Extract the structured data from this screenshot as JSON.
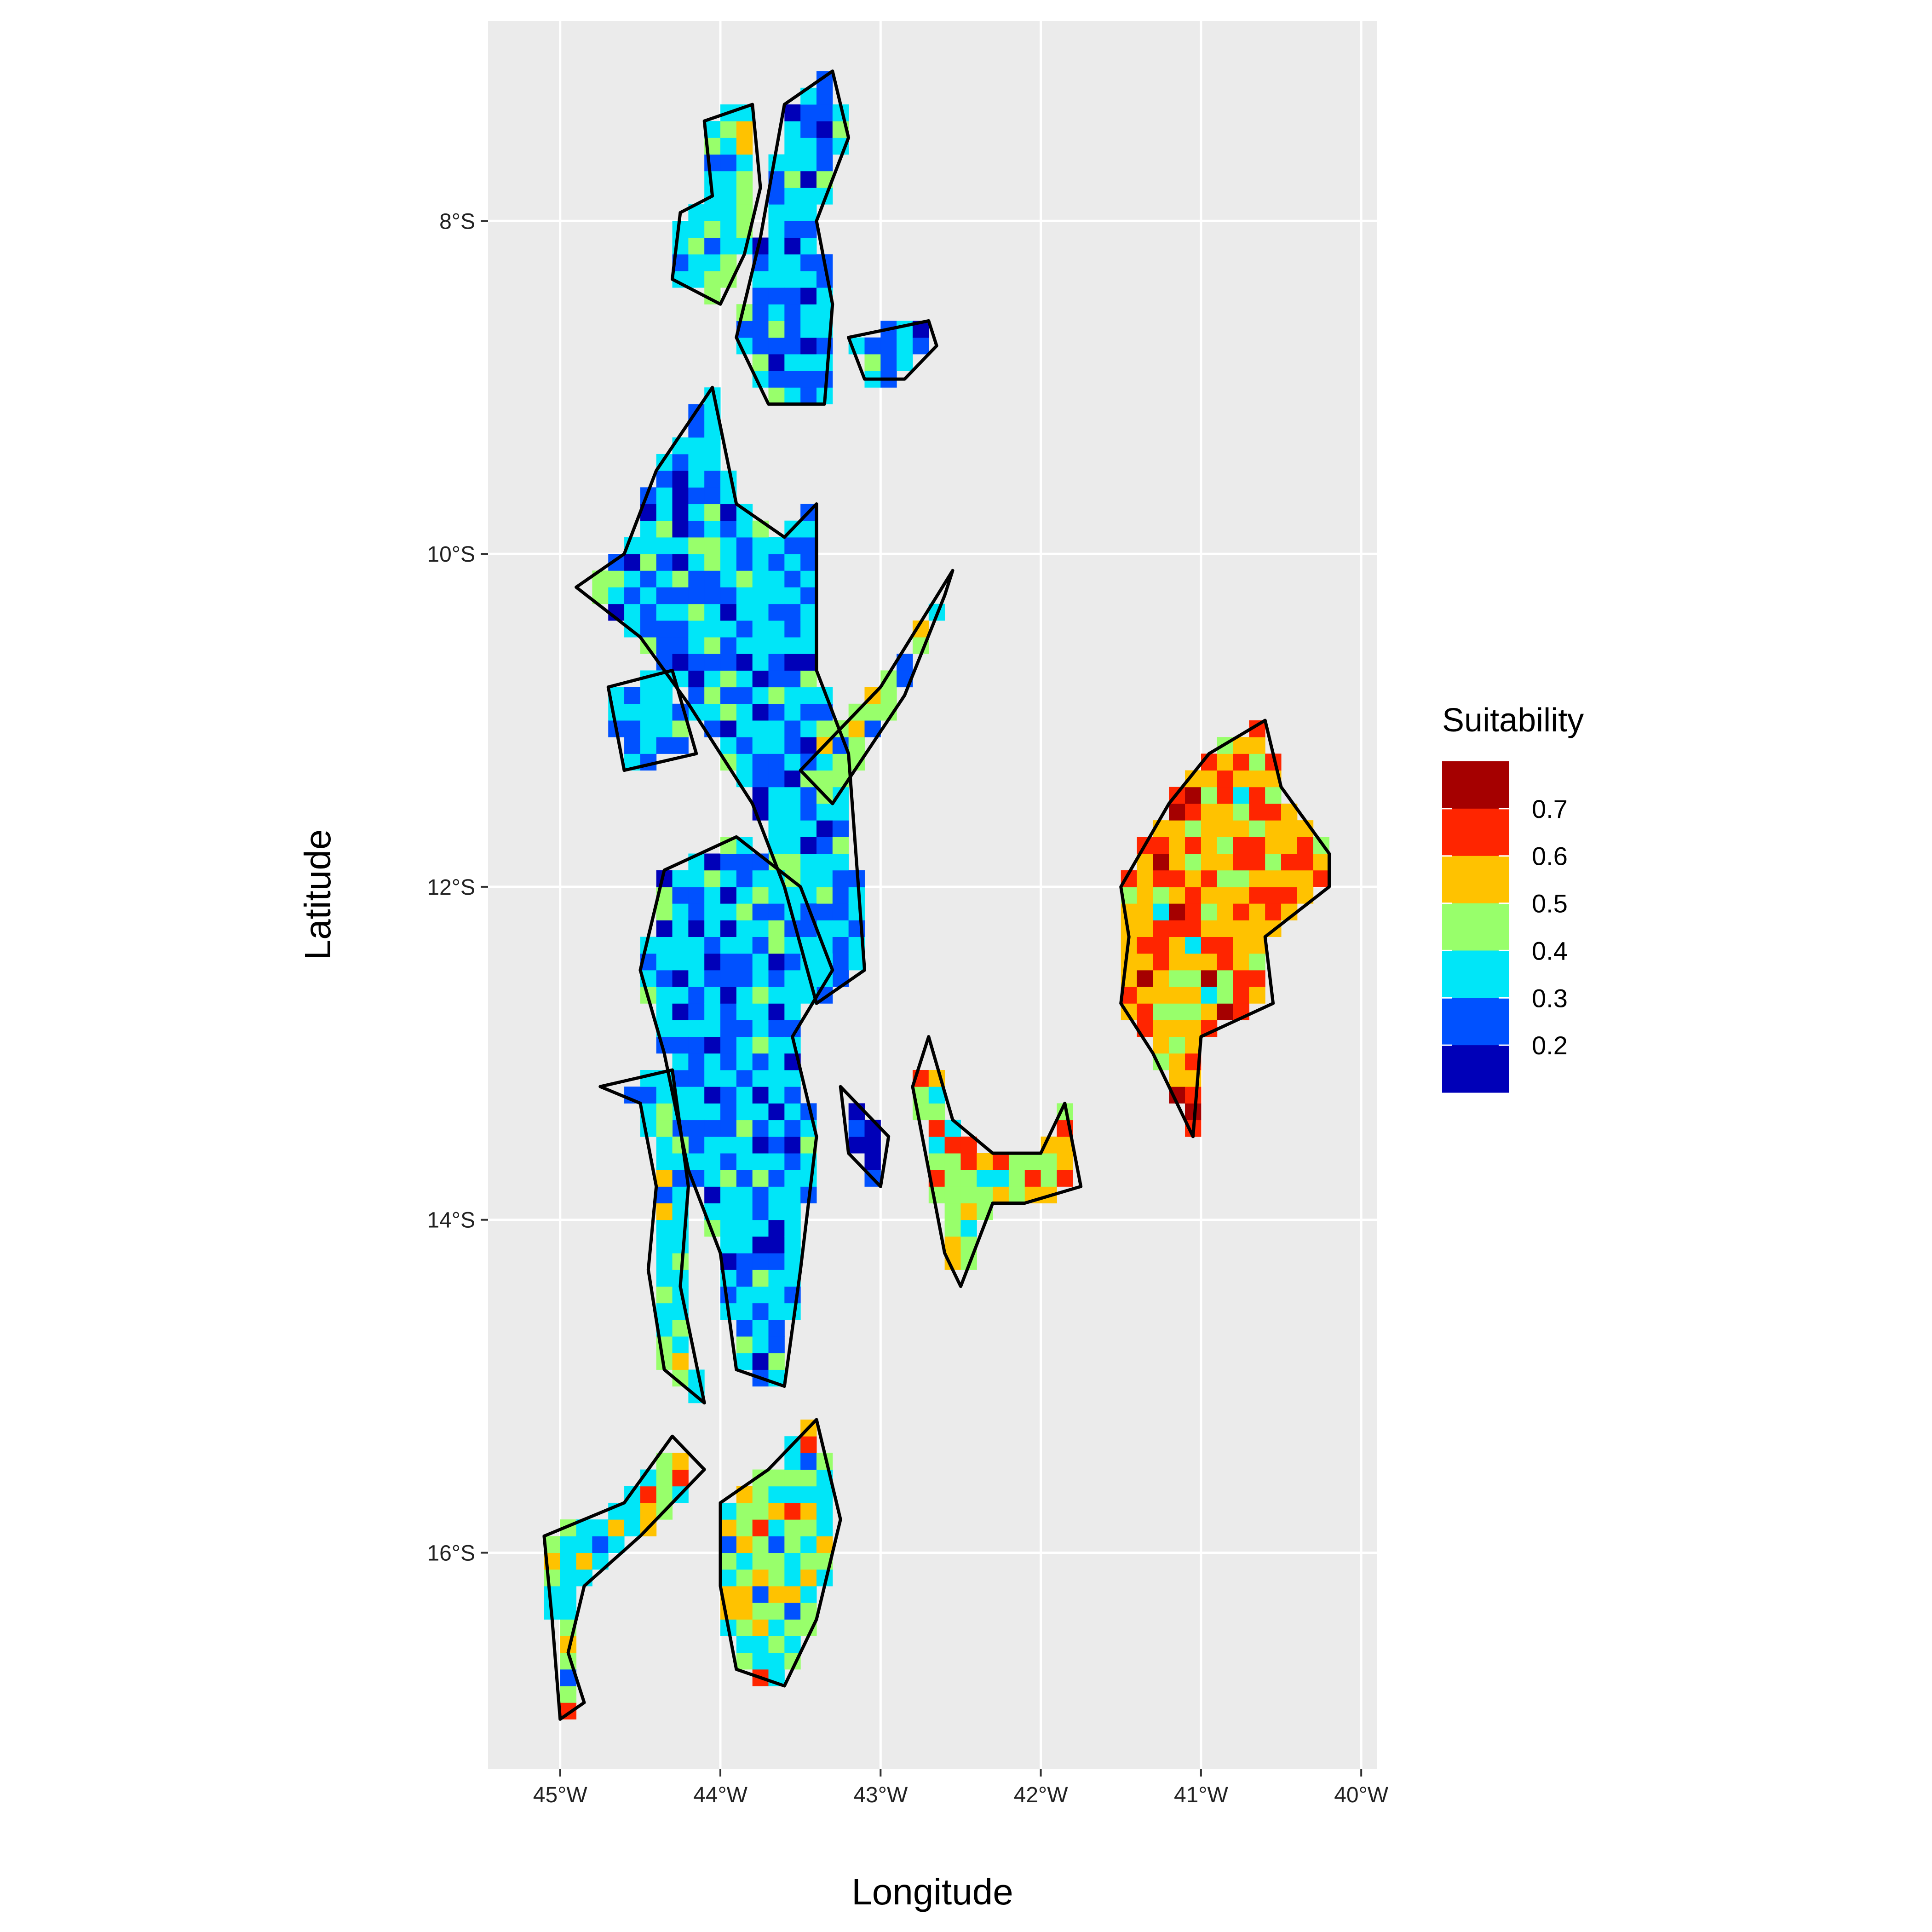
{
  "map": {
    "x_title": "Longitude",
    "y_title": "Latitude",
    "x_ticks": [
      {
        "lon": -45,
        "label": "45°W"
      },
      {
        "lon": -44,
        "label": "44°W"
      },
      {
        "lon": -43,
        "label": "43°W"
      },
      {
        "lon": -42,
        "label": "42°W"
      },
      {
        "lon": -41,
        "label": "41°W"
      },
      {
        "lon": -40,
        "label": "40°W"
      }
    ],
    "y_ticks": [
      {
        "lat": -8,
        "label": "8°S"
      },
      {
        "lat": -10,
        "label": "10°S"
      },
      {
        "lat": -12,
        "label": "12°S"
      },
      {
        "lat": -14,
        "label": "14°S"
      },
      {
        "lat": -16,
        "label": "16°S"
      }
    ],
    "lon_range": [
      -45.45,
      -39.9
    ],
    "lat_range": [
      -17.3,
      -6.8
    ],
    "panel_background": "#EBEBEB",
    "grid_color": "#FFFFFF",
    "outline_color": "#000000"
  },
  "legend": {
    "title": "Suitability",
    "labels": [
      "0.7",
      "0.6",
      "0.5",
      "0.4",
      "0.3",
      "0.2"
    ],
    "bins": [
      {
        "color": "#A50000",
        "range": [
          0.7,
          0.75
        ]
      },
      {
        "color": "#FF2500",
        "range": [
          0.6,
          0.7
        ]
      },
      {
        "color": "#FFC200",
        "range": [
          0.5,
          0.6
        ]
      },
      {
        "color": "#98FF6B",
        "range": [
          0.4,
          0.5
        ]
      },
      {
        "color": "#00E6F8",
        "range": [
          0.3,
          0.4
        ]
      },
      {
        "color": "#0051FF",
        "range": [
          0.2,
          0.3
        ]
      },
      {
        "color": "#0000B8",
        "range": [
          0.15,
          0.2
        ]
      }
    ]
  },
  "regions": [
    {
      "name": "north-west-strip",
      "tone": "green-cyan",
      "outline": [
        [
          -44.1,
          -7.4
        ],
        [
          -43.8,
          -7.3
        ],
        [
          -43.75,
          -7.8
        ],
        [
          -43.85,
          -8.2
        ],
        [
          -44.0,
          -8.5
        ],
        [
          -44.3,
          -8.35
        ],
        [
          -44.25,
          -7.95
        ],
        [
          -44.05,
          -7.85
        ]
      ]
    },
    {
      "name": "north-ridge",
      "tone": "cyan-blue",
      "outline": [
        [
          -43.6,
          -7.3
        ],
        [
          -43.3,
          -7.1
        ],
        [
          -43.2,
          -7.5
        ],
        [
          -43.4,
          -8.0
        ],
        [
          -43.3,
          -8.5
        ],
        [
          -43.35,
          -9.1
        ],
        [
          -43.7,
          -9.1
        ],
        [
          -43.9,
          -8.7
        ],
        [
          -43.75,
          -8.1
        ]
      ]
    },
    {
      "name": "north-east-islet",
      "tone": "cyan-blue",
      "outline": [
        [
          -43.2,
          -8.7
        ],
        [
          -42.7,
          -8.6
        ],
        [
          -42.65,
          -8.75
        ],
        [
          -42.85,
          -8.95
        ],
        [
          -43.1,
          -8.95
        ]
      ]
    },
    {
      "name": "central-west-block",
      "tone": "cyan-blue",
      "outline": [
        [
          -44.4,
          -9.5
        ],
        [
          -44.05,
          -9.0
        ],
        [
          -43.9,
          -9.7
        ],
        [
          -43.6,
          -9.9
        ],
        [
          -43.4,
          -9.7
        ],
        [
          -43.4,
          -10.7
        ],
        [
          -43.2,
          -11.2
        ],
        [
          -43.1,
          -12.5
        ],
        [
          -43.4,
          -12.7
        ],
        [
          -43.6,
          -12.0
        ],
        [
          -43.8,
          -11.5
        ],
        [
          -44.2,
          -10.9
        ],
        [
          -44.5,
          -10.5
        ],
        [
          -44.9,
          -10.2
        ],
        [
          -44.6,
          -10.0
        ]
      ]
    },
    {
      "name": "northeast-arm",
      "tone": "green-blue",
      "outline": [
        [
          -43.5,
          -11.3
        ],
        [
          -43.0,
          -10.8
        ],
        [
          -42.55,
          -10.1
        ],
        [
          -42.6,
          -10.25
        ],
        [
          -42.85,
          -10.85
        ],
        [
          -43.3,
          -11.5
        ]
      ]
    },
    {
      "name": "west-lobe",
      "tone": "cyan",
      "outline": [
        [
          -44.6,
          -11.3
        ],
        [
          -44.15,
          -11.2
        ],
        [
          -44.3,
          -10.7
        ],
        [
          -44.7,
          -10.8
        ]
      ]
    },
    {
      "name": "central-block",
      "tone": "cyan-blue",
      "outline": [
        [
          -44.35,
          -11.9
        ],
        [
          -43.9,
          -11.7
        ],
        [
          -43.5,
          -12.0
        ],
        [
          -43.3,
          -12.5
        ],
        [
          -43.55,
          -12.9
        ],
        [
          -43.4,
          -13.5
        ],
        [
          -43.5,
          -14.3
        ],
        [
          -43.6,
          -15.0
        ],
        [
          -43.9,
          -14.9
        ],
        [
          -44.0,
          -14.2
        ],
        [
          -44.2,
          -13.7
        ],
        [
          -44.35,
          -13.0
        ],
        [
          -44.5,
          -12.5
        ]
      ]
    },
    {
      "name": "west-ridge",
      "tone": "green-cyan",
      "outline": [
        [
          -44.75,
          -13.2
        ],
        [
          -44.5,
          -13.3
        ],
        [
          -44.4,
          -13.8
        ],
        [
          -44.45,
          -14.3
        ],
        [
          -44.35,
          -14.9
        ],
        [
          -44.1,
          -15.1
        ],
        [
          -44.25,
          -14.4
        ],
        [
          -44.2,
          -13.8
        ],
        [
          -44.3,
          -13.1
        ]
      ]
    },
    {
      "name": "southwest-lobe",
      "tone": "cyan-orange",
      "outline": [
        [
          -45.1,
          -15.9
        ],
        [
          -44.6,
          -15.7
        ],
        [
          -44.3,
          -15.3
        ],
        [
          -44.1,
          -15.5
        ],
        [
          -44.5,
          -15.9
        ],
        [
          -44.85,
          -16.2
        ],
        [
          -44.95,
          -16.6
        ],
        [
          -44.85,
          -16.9
        ],
        [
          -45.0,
          -17.0
        ],
        [
          -45.05,
          -16.4
        ]
      ]
    },
    {
      "name": "south-central",
      "tone": "cyan-orange",
      "outline": [
        [
          -44.0,
          -15.7
        ],
        [
          -43.7,
          -15.5
        ],
        [
          -43.4,
          -15.2
        ],
        [
          -43.25,
          -15.8
        ],
        [
          -43.4,
          -16.4
        ],
        [
          -43.6,
          -16.8
        ],
        [
          -43.9,
          -16.7
        ],
        [
          -44.0,
          -16.2
        ]
      ]
    },
    {
      "name": "east-islet",
      "tone": "blue",
      "outline": [
        [
          -43.25,
          -13.2
        ],
        [
          -42.95,
          -13.5
        ],
        [
          -43.0,
          -13.8
        ],
        [
          -43.2,
          -13.6
        ]
      ]
    },
    {
      "name": "east-ridge",
      "tone": "green-red",
      "outline": [
        [
          -42.7,
          -12.9
        ],
        [
          -42.55,
          -13.4
        ],
        [
          -42.3,
          -13.6
        ],
        [
          -42.0,
          -13.6
        ],
        [
          -41.85,
          -13.3
        ],
        [
          -41.75,
          -13.8
        ],
        [
          -42.1,
          -13.9
        ],
        [
          -42.3,
          -13.9
        ],
        [
          -42.5,
          -14.4
        ],
        [
          -42.6,
          -14.2
        ],
        [
          -42.8,
          -13.2
        ]
      ]
    },
    {
      "name": "far-east-region",
      "tone": "orange-red",
      "outline": [
        [
          -41.5,
          -12.0
        ],
        [
          -41.2,
          -11.5
        ],
        [
          -40.95,
          -11.2
        ],
        [
          -40.6,
          -11.0
        ],
        [
          -40.5,
          -11.4
        ],
        [
          -40.2,
          -11.8
        ],
        [
          -40.2,
          -12.0
        ],
        [
          -40.6,
          -12.3
        ],
        [
          -40.55,
          -12.7
        ],
        [
          -41.0,
          -12.9
        ],
        [
          -41.05,
          -13.5
        ],
        [
          -41.3,
          -13.0
        ],
        [
          -41.5,
          -12.7
        ],
        [
          -41.45,
          -12.3
        ]
      ]
    }
  ]
}
